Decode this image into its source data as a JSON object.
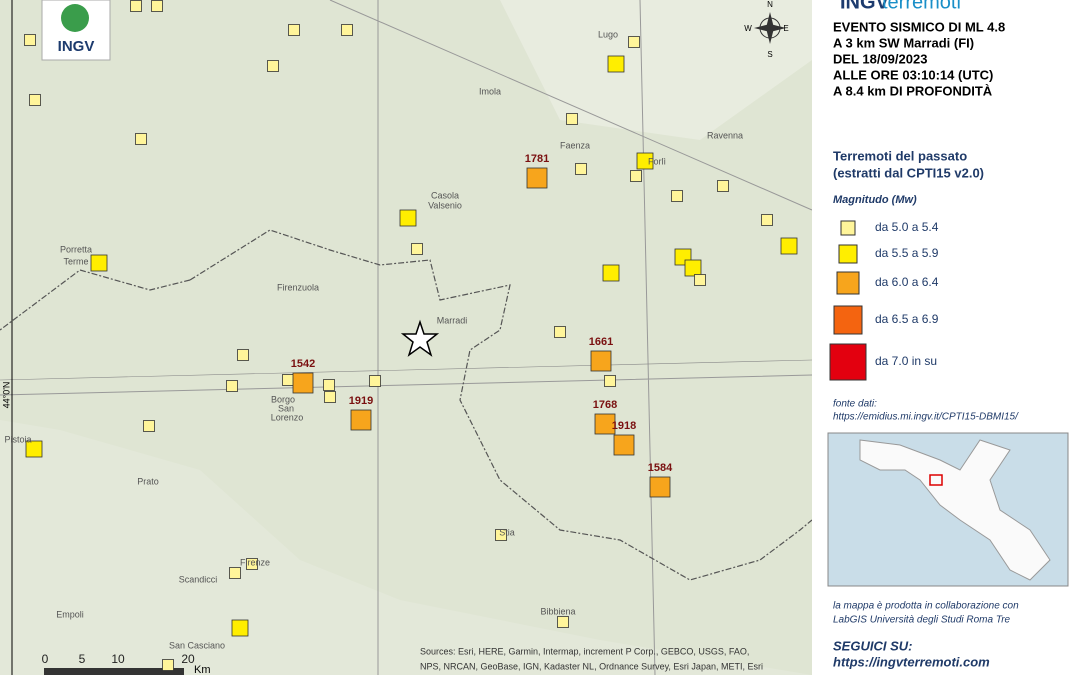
{
  "header": {
    "logo": "INGV",
    "brand_a": "INGV",
    "brand_b": "terremoti"
  },
  "event": {
    "lines": [
      "EVENTO SISMICO DI ML 4.8",
      "A 3 km SW Marradi (FI)",
      "DEL 18/09/2023",
      "ALLE ORE 03:10:14 (UTC)",
      "A 8.4 km DI PROFONDITÀ"
    ]
  },
  "legend": {
    "title": [
      "Terremoti del passato",
      "(estratti dal CPTI15 v2.0)"
    ],
    "subtitle": "Magnitudo (Mw)",
    "classes": [
      {
        "label": "da 5.0 a 5.4",
        "color": "#fff59a"
      },
      {
        "label": "da 5.5 a 5.9",
        "color": "#ffee00"
      },
      {
        "label": "da 6.0 a 6.4",
        "color": "#f7a51c"
      },
      {
        "label": "da 6.5 a 6.9",
        "color": "#f46410"
      },
      {
        "label": "da 7.0 in su",
        "color": "#e3000f"
      }
    ]
  },
  "source": {
    "label": "fonte dati:",
    "url": "https://emidius.mi.ingv.it/CPTI15-DBMI15/"
  },
  "credits": [
    "la mappa è prodotta in collaborazione con",
    "LabGIS Università degli Studi Roma Tre"
  ],
  "social": {
    "label": "SEGUICI SU:",
    "url": "https://ingvterremoti.com"
  },
  "map": {
    "compass": [
      "N",
      "E",
      "S",
      "W"
    ],
    "latitude_label": "44°0'N",
    "places": [
      "Lugo",
      "Imola",
      "Faenza",
      "Forlì",
      "Ravenna",
      "Casola",
      "Valsenio",
      "Firenzuola",
      "Marradi",
      "Borgo",
      "San",
      "Lorenzo",
      "Pistoia",
      "Prato",
      "Firenze",
      "Scandicci",
      "Empoli",
      "Bibbiena",
      "Porretta",
      "Terme",
      "Stia",
      "San Casciano"
    ],
    "years": [
      "1781",
      "1542",
      "1919",
      "1661",
      "1768",
      "1918",
      "1584"
    ],
    "scale": {
      "ticks": [
        "0",
        "5",
        "10",
        "20"
      ],
      "unit": "Km"
    },
    "attribution": [
      "Sources: Esri, HERE, Garmin, Intermap, increment P Corp., GEBCO, USGS, FAO,",
      "NPS, NRCAN, GeoBase, IGN, Kadaster NL, Ordnance Survey, Esri Japan, METI, Esri"
    ]
  }
}
